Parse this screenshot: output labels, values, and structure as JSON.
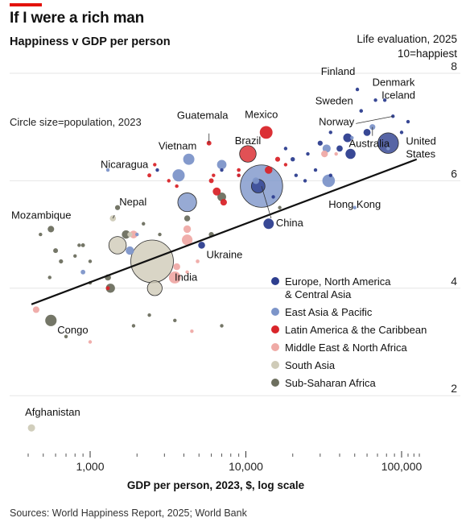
{
  "header": {
    "title": "If I were a rich man",
    "subtitle": "Happiness v GDP per person",
    "ylabel_line1": "Life evaluation, 2025",
    "ylabel_line2": "10=happiest"
  },
  "note": "Circle size=population, 2023",
  "source": "Sources: World Happiness Report, 2025; World Bank",
  "colors": {
    "accent": "#e3120b",
    "grid": "#e6e6e6",
    "text": "#111111",
    "europe": "#2d3e8f",
    "eastasia": "#7d95c9",
    "latam": "#d9252a",
    "mena": "#efaaa6",
    "southasia": "#cfcbb8",
    "ssa": "#6d6f5f"
  },
  "chart_data": {
    "type": "scatter",
    "title": "Happiness v GDP per person",
    "xlabel": "GDP per person, 2023, $, log scale",
    "ylabel": "Life evaluation, 2025",
    "x_scale": "log",
    "xlim": [
      400,
      150000
    ],
    "ylim": [
      1,
      8
    ],
    "x_ticks": [
      {
        "value": 1000,
        "label": "1,000"
      },
      {
        "value": 10000,
        "label": "10,000"
      },
      {
        "value": 100000,
        "label": "100,000"
      }
    ],
    "y_ticks": [
      {
        "value": 8,
        "label": "8"
      },
      {
        "value": 6,
        "label": "6"
      },
      {
        "value": 4,
        "label": "4"
      },
      {
        "value": 2,
        "label": "2"
      }
    ],
    "grid": true,
    "legend_position": "right",
    "trendline": {
      "x": [
        420,
        125000
      ],
      "y": [
        3.7,
        6.4
      ]
    },
    "legend": [
      {
        "key": "europe",
        "label": "Europe, North America & Central Asia"
      },
      {
        "key": "eastasia",
        "label": "East Asia & Pacific"
      },
      {
        "key": "latam",
        "label": "Latin America & the Caribbean"
      },
      {
        "key": "mena",
        "label": "Middle East & North Africa"
      },
      {
        "key": "southasia",
        "label": "South Asia"
      },
      {
        "key": "ssa",
        "label": "Sub-Saharan Africa"
      }
    ],
    "points": [
      {
        "label": "Finland",
        "x": 52000,
        "y": 7.7,
        "region": "europe",
        "pop": 5.6
      },
      {
        "label": "Denmark",
        "x": 68000,
        "y": 7.5,
        "region": "europe",
        "pop": 5.9
      },
      {
        "label": "Iceland",
        "x": 78000,
        "y": 7.5,
        "region": "europe",
        "pop": 0.4
      },
      {
        "label": "Sweden",
        "x": 55000,
        "y": 7.3,
        "region": "europe",
        "pop": 10.5
      },
      {
        "label": "Norway",
        "x": 88000,
        "y": 7.2,
        "region": "europe",
        "pop": 5.5
      },
      {
        "label": "Australia",
        "x": 65000,
        "y": 7.0,
        "region": "eastasia",
        "pop": 26
      },
      {
        "label": "United States",
        "x": 82000,
        "y": 6.7,
        "region": "europe",
        "pop": 335
      },
      {
        "label": "Guatemala",
        "x": 5800,
        "y": 6.7,
        "region": "latam",
        "pop": 18
      },
      {
        "label": "Mexico",
        "x": 13500,
        "y": 6.9,
        "region": "latam",
        "pop": 128
      },
      {
        "label": "Brazil",
        "x": 10300,
        "y": 6.5,
        "region": "latam",
        "pop": 216
      },
      {
        "label": "Vietnam",
        "x": 4300,
        "y": 6.4,
        "region": "eastasia",
        "pop": 99
      },
      {
        "label": "Nicaragua",
        "x": 2600,
        "y": 6.3,
        "region": "latam",
        "pop": 7
      },
      {
        "label": "China",
        "x": 12600,
        "y": 5.9,
        "region": "eastasia",
        "pop": 1410
      },
      {
        "label": "Hong Kong",
        "x": 50000,
        "y": 5.5,
        "region": "eastasia",
        "pop": 7.5
      },
      {
        "label": "Mozambique",
        "x": 560,
        "y": 5.1,
        "region": "ssa",
        "pop": 33
      },
      {
        "label": "Nepal",
        "x": 1400,
        "y": 5.3,
        "region": "southasia",
        "pop": 30
      },
      {
        "label": "Ukraine",
        "x": 5200,
        "y": 4.8,
        "region": "europe",
        "pop": 37
      },
      {
        "label": "India",
        "x": 2500,
        "y": 4.5,
        "region": "southasia",
        "pop": 1430
      },
      {
        "label": "Congo",
        "x": 560,
        "y": 3.4,
        "region": "ssa",
        "pop": 102
      },
      {
        "label": "Afghanistan",
        "x": 420,
        "y": 1.4,
        "region": "southasia",
        "pop": 41
      },
      {
        "label": "",
        "x": 30000,
        "y": 6.7,
        "region": "europe",
        "pop": 20
      },
      {
        "label": "",
        "x": 40000,
        "y": 6.6,
        "region": "europe",
        "pop": 30
      },
      {
        "label": "",
        "x": 45000,
        "y": 6.8,
        "region": "europe",
        "pop": 60
      },
      {
        "label": "",
        "x": 47000,
        "y": 6.5,
        "region": "europe",
        "pop": 80
      },
      {
        "label": "",
        "x": 35000,
        "y": 6.9,
        "region": "europe",
        "pop": 10
      },
      {
        "label": "",
        "x": 25000,
        "y": 6.5,
        "region": "europe",
        "pop": 10
      },
      {
        "label": "",
        "x": 20000,
        "y": 6.4,
        "region": "europe",
        "pop": 15
      },
      {
        "label": "",
        "x": 18000,
        "y": 6.6,
        "region": "europe",
        "pop": 10
      },
      {
        "label": "",
        "x": 60000,
        "y": 6.9,
        "region": "europe",
        "pop": 40
      },
      {
        "label": "",
        "x": 100000,
        "y": 6.9,
        "region": "europe",
        "pop": 1
      },
      {
        "label": "",
        "x": 110000,
        "y": 7.1,
        "region": "europe",
        "pop": 1
      },
      {
        "label": "",
        "x": 15000,
        "y": 5.7,
        "region": "europe",
        "pop": 6
      },
      {
        "label": "",
        "x": 12000,
        "y": 5.9,
        "region": "europe",
        "pop": 146
      },
      {
        "label": "",
        "x": 2700,
        "y": 6.2,
        "region": "europe",
        "pop": 4
      },
      {
        "label": "",
        "x": 14000,
        "y": 5.2,
        "region": "europe",
        "pop": 85
      },
      {
        "label": "",
        "x": 7000,
        "y": 6.2,
        "region": "europe",
        "pop": 10
      },
      {
        "label": "",
        "x": 24000,
        "y": 6.0,
        "region": "europe",
        "pop": 4
      },
      {
        "label": "",
        "x": 21000,
        "y": 6.1,
        "region": "europe",
        "pop": 4
      },
      {
        "label": "",
        "x": 35000,
        "y": 6.1,
        "region": "europe",
        "pop": 4
      },
      {
        "label": "",
        "x": 28000,
        "y": 6.2,
        "region": "europe",
        "pop": 3
      },
      {
        "label": "",
        "x": 9000,
        "y": 6.1,
        "region": "europe",
        "pop": 5
      },
      {
        "label": "",
        "x": 33000,
        "y": 6.6,
        "region": "eastasia",
        "pop": 52
      },
      {
        "label": "",
        "x": 34000,
        "y": 6.0,
        "region": "eastasia",
        "pop": 124
      },
      {
        "label": "",
        "x": 4200,
        "y": 5.6,
        "region": "eastasia",
        "pop": 277
      },
      {
        "label": "",
        "x": 3700,
        "y": 6.1,
        "region": "eastasia",
        "pop": 117
      },
      {
        "label": "",
        "x": 7000,
        "y": 6.3,
        "region": "eastasia",
        "pop": 71
      },
      {
        "label": "",
        "x": 11600,
        "y": 6.0,
        "region": "eastasia",
        "pop": 34
      },
      {
        "label": "",
        "x": 82000,
        "y": 6.6,
        "region": "eastasia",
        "pop": 6
      },
      {
        "label": "",
        "x": 48000,
        "y": 6.8,
        "region": "eastasia",
        "pop": 5
      },
      {
        "label": "",
        "x": 2000,
        "y": 5.0,
        "region": "eastasia",
        "pop": 7
      },
      {
        "label": "",
        "x": 1800,
        "y": 4.7,
        "region": "eastasia",
        "pop": 55
      },
      {
        "label": "",
        "x": 900,
        "y": 4.3,
        "region": "eastasia",
        "pop": 17
      },
      {
        "label": "",
        "x": 1300,
        "y": 6.2,
        "region": "eastasia",
        "pop": 3
      },
      {
        "label": "",
        "x": 6500,
        "y": 5.8,
        "region": "latam",
        "pop": 50
      },
      {
        "label": "",
        "x": 3200,
        "y": 6.0,
        "region": "latam",
        "pop": 10
      },
      {
        "label": "",
        "x": 16000,
        "y": 6.4,
        "region": "latam",
        "pop": 19
      },
      {
        "label": "",
        "x": 18000,
        "y": 6.3,
        "region": "latam",
        "pop": 3
      },
      {
        "label": "",
        "x": 7200,
        "y": 5.6,
        "region": "latam",
        "pop": 34
      },
      {
        "label": "",
        "x": 9000,
        "y": 6.1,
        "region": "latam",
        "pop": 5
      },
      {
        "label": "",
        "x": 2400,
        "y": 6.1,
        "region": "latam",
        "pop": 12
      },
      {
        "label": "",
        "x": 3600,
        "y": 5.9,
        "region": "latam",
        "pop": 10
      },
      {
        "label": "",
        "x": 6000,
        "y": 6.0,
        "region": "latam",
        "pop": 18
      },
      {
        "label": "",
        "x": 6200,
        "y": 6.1,
        "region": "latam",
        "pop": 6
      },
      {
        "label": "",
        "x": 9000,
        "y": 6.2,
        "region": "latam",
        "pop": 11
      },
      {
        "label": "",
        "x": 14000,
        "y": 6.2,
        "region": "latam",
        "pop": 46
      },
      {
        "label": "",
        "x": 1300,
        "y": 4.0,
        "region": "latam",
        "pop": 12
      },
      {
        "label": "",
        "x": 38000,
        "y": 6.5,
        "region": "mena",
        "pop": 10
      },
      {
        "label": "",
        "x": 32000,
        "y": 6.5,
        "region": "mena",
        "pop": 36
      },
      {
        "label": "",
        "x": 3500,
        "y": 4.2,
        "region": "mena",
        "pop": 112
      },
      {
        "label": "",
        "x": 4200,
        "y": 4.9,
        "region": "mena",
        "pop": 89
      },
      {
        "label": "",
        "x": 3600,
        "y": 4.4,
        "region": "mena",
        "pop": 37
      },
      {
        "label": "",
        "x": 4200,
        "y": 5.1,
        "region": "mena",
        "pop": 45
      },
      {
        "label": "",
        "x": 4900,
        "y": 4.5,
        "region": "mena",
        "pop": 11
      },
      {
        "label": "",
        "x": 450,
        "y": 3.6,
        "region": "mena",
        "pop": 34
      },
      {
        "label": "",
        "x": 1900,
        "y": 5.0,
        "region": "mena",
        "pop": 48
      },
      {
        "label": "",
        "x": 4200,
        "y": 4.3,
        "region": "mena",
        "pop": 5
      },
      {
        "label": "",
        "x": 4500,
        "y": 3.2,
        "region": "mena",
        "pop": 5
      },
      {
        "label": "",
        "x": 1000,
        "y": 3.0,
        "region": "mena",
        "pop": 1
      },
      {
        "label": "",
        "x": 1500,
        "y": 4.8,
        "region": "southasia",
        "pop": 240
      },
      {
        "label": "",
        "x": 2600,
        "y": 4.0,
        "region": "southasia",
        "pop": 172
      },
      {
        "label": "",
        "x": 1800,
        "y": 5.0,
        "region": "southasia",
        "pop": 20
      },
      {
        "label": "",
        "x": 1500,
        "y": 5.5,
        "region": "ssa",
        "pop": 20
      },
      {
        "label": "",
        "x": 1700,
        "y": 5.0,
        "region": "ssa",
        "pop": 56
      },
      {
        "label": "",
        "x": 1000,
        "y": 4.5,
        "region": "ssa",
        "pop": 5
      },
      {
        "label": "",
        "x": 1350,
        "y": 4.0,
        "region": "ssa",
        "pop": 65
      },
      {
        "label": "",
        "x": 1300,
        "y": 4.2,
        "region": "ssa",
        "pop": 30
      },
      {
        "label": "",
        "x": 2200,
        "y": 5.2,
        "region": "ssa",
        "pop": 6
      },
      {
        "label": "",
        "x": 4200,
        "y": 5.3,
        "region": "ssa",
        "pop": 28
      },
      {
        "label": "",
        "x": 6000,
        "y": 5.0,
        "region": "ssa",
        "pop": 20
      },
      {
        "label": "",
        "x": 7000,
        "y": 5.7,
        "region": "ssa",
        "pop": 60
      },
      {
        "label": "",
        "x": 2800,
        "y": 5.0,
        "region": "ssa",
        "pop": 8
      },
      {
        "label": "",
        "x": 900,
        "y": 4.8,
        "region": "ssa",
        "pop": 12
      },
      {
        "label": "",
        "x": 800,
        "y": 4.6,
        "region": "ssa",
        "pop": 3
      },
      {
        "label": "",
        "x": 650,
        "y": 4.5,
        "region": "ssa",
        "pop": 14
      },
      {
        "label": "",
        "x": 550,
        "y": 4.2,
        "region": "ssa",
        "pop": 10
      },
      {
        "label": "",
        "x": 600,
        "y": 4.7,
        "region": "ssa",
        "pop": 18
      },
      {
        "label": "",
        "x": 850,
        "y": 4.8,
        "region": "ssa",
        "pop": 5
      },
      {
        "label": "",
        "x": 1000,
        "y": 4.1,
        "region": "ssa",
        "pop": 3
      },
      {
        "label": "",
        "x": 1900,
        "y": 3.3,
        "region": "ssa",
        "pop": 5
      },
      {
        "label": "",
        "x": 2400,
        "y": 3.5,
        "region": "ssa",
        "pop": 1
      },
      {
        "label": "",
        "x": 16500,
        "y": 5.5,
        "region": "ssa",
        "pop": 2
      },
      {
        "label": "",
        "x": 7000,
        "y": 3.3,
        "region": "ssa",
        "pop": 1
      },
      {
        "label": "",
        "x": 700,
        "y": 3.1,
        "region": "ssa",
        "pop": 5
      },
      {
        "label": "",
        "x": 3500,
        "y": 3.4,
        "region": "ssa",
        "pop": 1
      },
      {
        "label": "",
        "x": 480,
        "y": 5.0,
        "region": "ssa",
        "pop": 8
      }
    ]
  }
}
